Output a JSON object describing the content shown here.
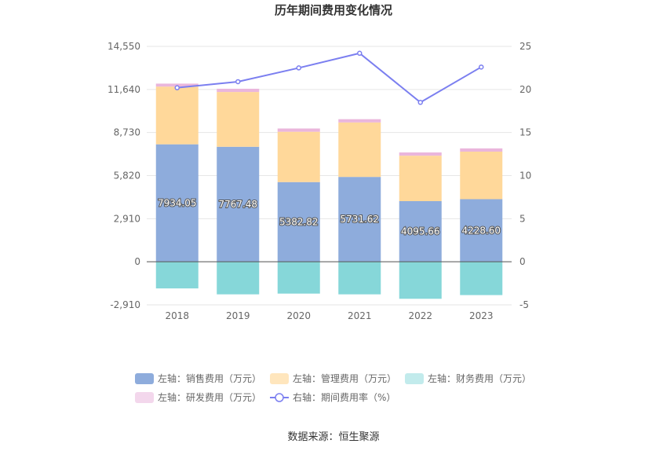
{
  "title": "历年期间费用变化情况",
  "source": "数据来源：恒生聚源",
  "chart_data": {
    "type": "bar",
    "categories": [
      "2018",
      "2019",
      "2020",
      "2021",
      "2022",
      "2023"
    ],
    "left_axis": {
      "ticks": [
        "14,550",
        "11,640",
        "8,730",
        "5,820",
        "2,910",
        "0",
        "-2,910"
      ],
      "range": [
        -2910,
        14550
      ]
    },
    "right_axis": {
      "ticks": [
        "25",
        "20",
        "15",
        "10",
        "5",
        "0",
        "-5"
      ],
      "range": [
        -5,
        25
      ]
    },
    "stacked": true,
    "series": [
      {
        "name": "左轴：销售费用（万元）",
        "axis": "left",
        "color": "#8eacdc",
        "values": [
          7934.05,
          7767.48,
          5382.82,
          5731.62,
          4095.66,
          4228.6
        ],
        "labels": [
          "7934.05",
          "7767.48",
          "5382.82",
          "5731.62",
          "4095.66",
          "4228.60"
        ]
      },
      {
        "name": "左轴：管理费用（万元）",
        "axis": "left",
        "color": "#ffd89a",
        "values": [
          3900,
          3700,
          3400,
          3680,
          3070,
          3210
        ]
      },
      {
        "name": "左轴：财务费用（万元）",
        "axis": "left",
        "color": "#86d7d9",
        "values": [
          -1800,
          -2200,
          -2150,
          -2200,
          -2500,
          -2250
        ]
      },
      {
        "name": "左轴：研发费用（万元）",
        "axis": "left",
        "color": "#eab6dc",
        "values": [
          200,
          220,
          220,
          220,
          220,
          220
        ]
      },
      {
        "name": "右轴：期间费用率（%）",
        "axis": "right",
        "type": "line",
        "color": "#7b7ff0",
        "values": [
          20.2,
          20.9,
          22.5,
          24.2,
          18.5,
          22.6
        ]
      }
    ],
    "legend_position": "bottom",
    "grid": true
  }
}
